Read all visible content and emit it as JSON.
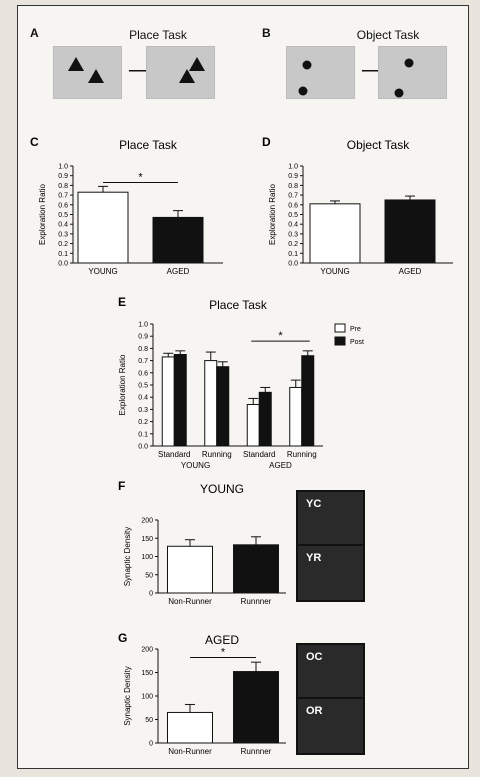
{
  "panelA": {
    "letter": "A",
    "title": "Place Task"
  },
  "panelB": {
    "letter": "B",
    "title": "Object Task"
  },
  "icons": {
    "arrow": "right-arrow-icon",
    "triangle": "triangle-object-icon",
    "dot": "circle-object-icon"
  },
  "chart_data": [
    {
      "id": "C",
      "type": "bar",
      "title": "Place Task",
      "ylabel": "Exploration Ratio",
      "categories": [
        "YOUNG",
        "AGED"
      ],
      "values": [
        0.73,
        0.47
      ],
      "errors": [
        0.06,
        0.07
      ],
      "colors": [
        "#ffffff",
        "#111111"
      ],
      "ylim": [
        0,
        1.0
      ],
      "yticks": [
        "0.0",
        "0.1",
        "0.2",
        "0.3",
        "0.4",
        "0.5",
        "0.6",
        "0.7",
        "0.8",
        "0.9",
        "1.0"
      ],
      "annotation": "*"
    },
    {
      "id": "D",
      "type": "bar",
      "title": "Object Task",
      "ylabel": "Exploration Ratio",
      "categories": [
        "YOUNG",
        "AGED"
      ],
      "values": [
        0.61,
        0.65
      ],
      "errors": [
        0.03,
        0.04
      ],
      "colors": [
        "#ffffff",
        "#111111"
      ],
      "ylim": [
        0,
        1.0
      ],
      "yticks": [
        "0.0",
        "0.1",
        "0.2",
        "0.3",
        "0.4",
        "0.5",
        "0.6",
        "0.7",
        "0.8",
        "0.9",
        "1.0"
      ]
    },
    {
      "id": "E",
      "type": "bar",
      "title": "Place Task",
      "ylabel": "Exploration Ratio",
      "categories": [
        "Standard",
        "Running",
        "Standard",
        "Running"
      ],
      "groups": [
        "YOUNG",
        "AGED"
      ],
      "series": [
        {
          "name": "Pre",
          "values": [
            0.73,
            0.7,
            0.34,
            0.48
          ],
          "errors": [
            0.03,
            0.07,
            0.05,
            0.06
          ],
          "color": "#ffffff"
        },
        {
          "name": "Post",
          "values": [
            0.75,
            0.65,
            0.44,
            0.74
          ],
          "errors": [
            0.03,
            0.04,
            0.04,
            0.04
          ],
          "color": "#111111"
        }
      ],
      "ylim": [
        0,
        1.0
      ],
      "yticks": [
        "0.0",
        "0.1",
        "0.2",
        "0.3",
        "0.4",
        "0.5",
        "0.6",
        "0.7",
        "0.8",
        "0.9",
        "1.0"
      ],
      "annotation": "*",
      "legend_position": "top-right"
    },
    {
      "id": "F",
      "type": "bar",
      "title": "YOUNG",
      "ylabel": "Synaptic Density",
      "categories": [
        "Non-Runner",
        "Runnner"
      ],
      "values": [
        128,
        132
      ],
      "errors": [
        18,
        22
      ],
      "colors": [
        "#ffffff",
        "#111111"
      ],
      "ylim": [
        0,
        200
      ],
      "yticks": [
        "0",
        "50",
        "100",
        "150",
        "200"
      ],
      "images": [
        "YC",
        "YR"
      ]
    },
    {
      "id": "G",
      "type": "bar",
      "title": "AGED",
      "ylabel": "Synaptic Density",
      "categories": [
        "Non-Runner",
        "Runnner"
      ],
      "values": [
        65,
        152
      ],
      "errors": [
        17,
        20
      ],
      "colors": [
        "#ffffff",
        "#111111"
      ],
      "ylim": [
        0,
        200
      ],
      "yticks": [
        "0",
        "50",
        "100",
        "150",
        "200"
      ],
      "annotation": "*",
      "images": [
        "OC",
        "OR"
      ]
    }
  ]
}
